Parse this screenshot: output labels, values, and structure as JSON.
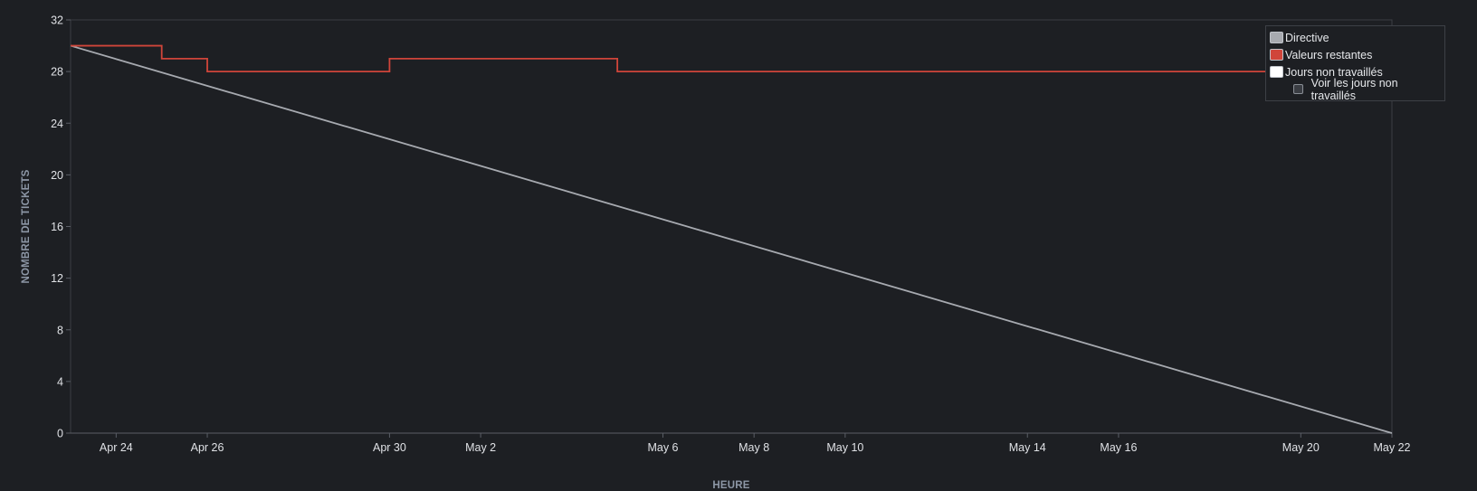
{
  "chart_data": {
    "type": "line",
    "xlabel": "HEURE",
    "ylabel": "NOMBRE DE TICKETS",
    "ylim": [
      0,
      32
    ],
    "yticks": [
      0,
      4,
      8,
      12,
      16,
      20,
      24,
      28,
      32
    ],
    "xlim": [
      "Apr 23",
      "May 22"
    ],
    "xticks": [
      "Apr 24",
      "Apr 26",
      "Apr 30",
      "May 2",
      "May 6",
      "May 8",
      "May 10",
      "May 14",
      "May 16",
      "May 20",
      "May 22"
    ],
    "grid": false,
    "legend_position": "top-right",
    "series": [
      {
        "name": "Directive",
        "color": "#a7aab0",
        "style": "line",
        "points": [
          [
            "Apr 23",
            30
          ],
          [
            "May 22",
            0
          ]
        ]
      },
      {
        "name": "Valeurs restantes",
        "color": "#d0453a",
        "style": "step",
        "points": [
          [
            "Apr 23",
            30
          ],
          [
            "Apr 25",
            29
          ],
          [
            "Apr 26",
            28
          ],
          [
            "Apr 30",
            29
          ],
          [
            "May 5",
            28
          ],
          [
            "May 20",
            28
          ]
        ]
      }
    ],
    "legend": {
      "items": [
        {
          "label": "Directive",
          "color": "#a7aab0"
        },
        {
          "label": "Valeurs restantes",
          "color": "#d0453a"
        },
        {
          "label": "Jours non travaillés",
          "color": "#ffffff"
        }
      ],
      "checkbox_label": "Voir les jours non travaillés",
      "checkbox_checked": false
    }
  }
}
